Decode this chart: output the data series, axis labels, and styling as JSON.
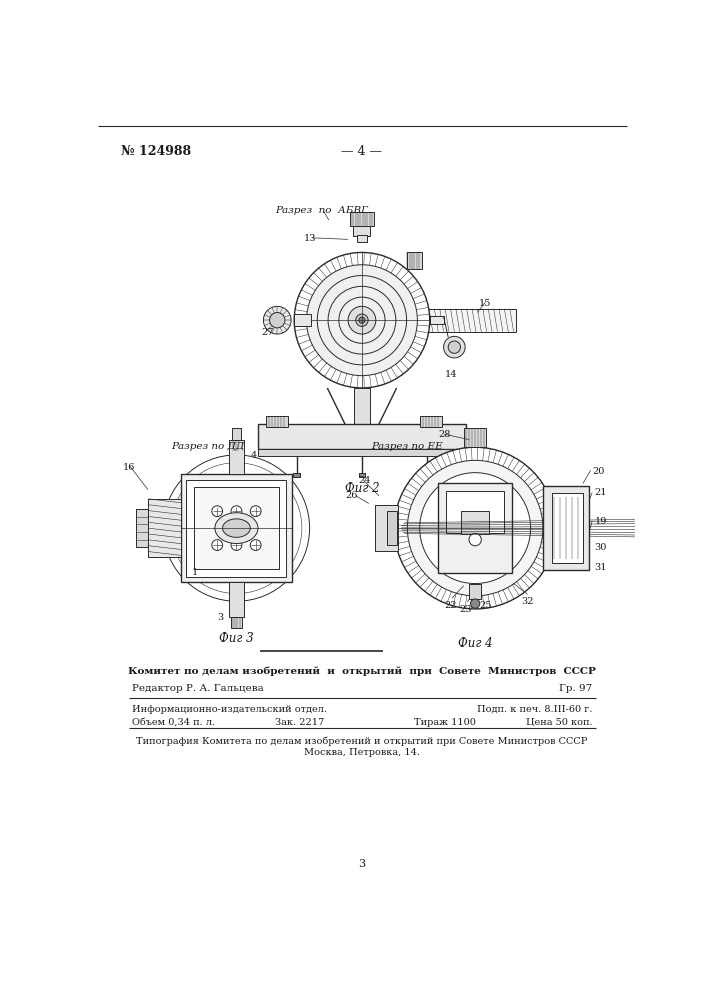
{
  "page_number_left": "№ 124988",
  "page_number_center": "— 4 —",
  "fig2_label": "Фиг 2",
  "fig2_annotation": "Разрез  по  АБВГ",
  "fig3_label": "Фиг 3",
  "fig3_annotation_left": "Разрез по ДД",
  "fig4_label": "Фиг 4",
  "fig4_annotation_right": "Разрез по ЕЕ",
  "footer_committee": "Комитет по делам изобретений  и  открытий  при  Совете  Министров  СССР",
  "footer_editor": "Редактор Р. А. Гальцева",
  "footer_gr": "Гр. 97",
  "footer_info": "Информационно-издательский отдел.",
  "footer_podp": "Подп. к печ. 8.III-60 г.",
  "footer_obem": "Объем 0,34 п. л.",
  "footer_zak": "Зак. 2217",
  "footer_tiraj": "Тираж 1100",
  "footer_cena": "Цена 50 коп.",
  "footer_tipografia": "Типография Комитета по делам изобретений и открытий при Совете Министров СССР",
  "footer_moscow": "Москва, Петровка, 14.",
  "page_num_bottom": "3",
  "bg_color": "#ffffff",
  "text_color": "#1a1a1a",
  "drawing_color": "#2a2a2a"
}
